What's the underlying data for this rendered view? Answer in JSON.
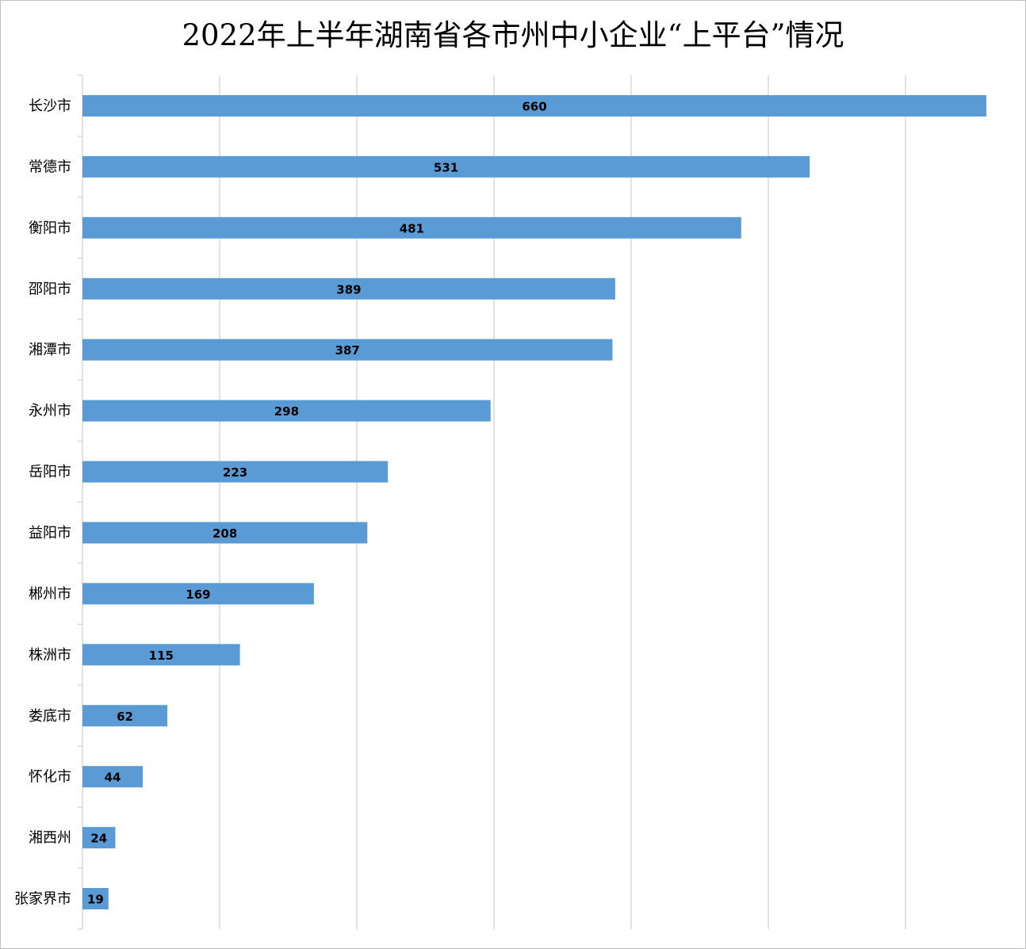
{
  "chart_data": {
    "type": "bar",
    "orientation": "horizontal",
    "title": "2022年上半年湖南省各市州中小企业“上平台”情况",
    "categories": [
      "长沙市",
      "常德市",
      "衡阳市",
      "邵阳市",
      "湘潭市",
      "永州市",
      "岳阳市",
      "益阳市",
      "郴州市",
      "株洲市",
      "娄底市",
      "怀化市",
      "湘西州",
      "张家界市"
    ],
    "values": [
      660,
      531,
      481,
      389,
      387,
      298,
      223,
      208,
      169,
      115,
      62,
      44,
      24,
      19
    ],
    "xlim": [
      0,
      700
    ],
    "grid": true,
    "bar_color": "#5b9bd5",
    "grid_color": "#d9d9d9",
    "data_labels": true
  }
}
